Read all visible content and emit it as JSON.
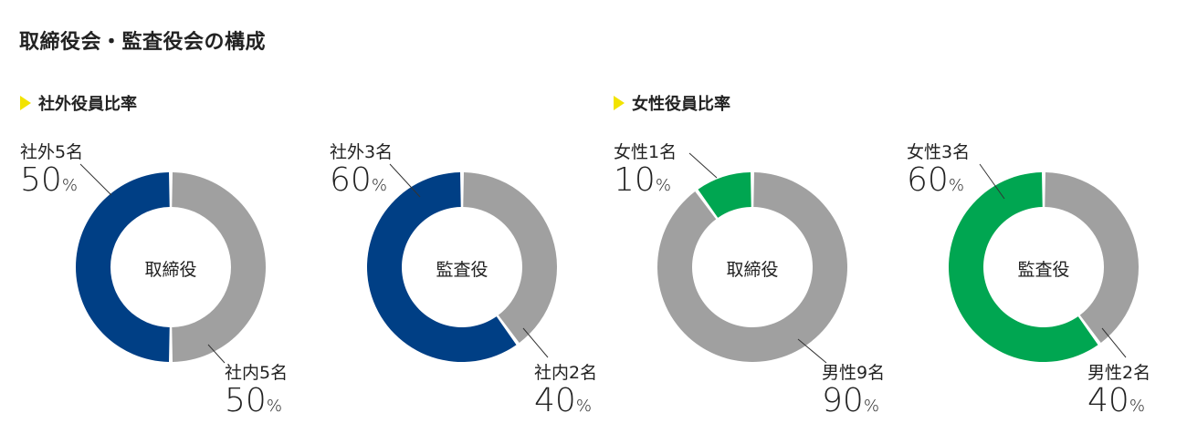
{
  "title": "取締役会・監査役会の構成",
  "sections": [
    {
      "label": "社外役員比率"
    },
    {
      "label": "女性役員比率"
    }
  ],
  "colors": {
    "navy": "#003f85",
    "green": "#00a651",
    "gray": "#a0a0a0",
    "accent": "#f2e300"
  },
  "chart_data": [
    {
      "type": "pie",
      "center_label": "取締役",
      "slices": [
        {
          "label": "社外5名",
          "value": 50,
          "pct_text": "50",
          "color": "#003f85"
        },
        {
          "label": "社内5名",
          "value": 50,
          "pct_text": "50",
          "color": "#a0a0a0"
        }
      ]
    },
    {
      "type": "pie",
      "center_label": "監査役",
      "slices": [
        {
          "label": "社外3名",
          "value": 60,
          "pct_text": "60",
          "color": "#003f85"
        },
        {
          "label": "社内2名",
          "value": 40,
          "pct_text": "40",
          "color": "#a0a0a0"
        }
      ]
    },
    {
      "type": "pie",
      "center_label": "取締役",
      "slices": [
        {
          "label": "女性1名",
          "value": 10,
          "pct_text": "10",
          "color": "#00a651"
        },
        {
          "label": "男性9名",
          "value": 90,
          "pct_text": "90",
          "color": "#a0a0a0"
        }
      ]
    },
    {
      "type": "pie",
      "center_label": "監査役",
      "slices": [
        {
          "label": "女性3名",
          "value": 60,
          "pct_text": "60",
          "color": "#00a651"
        },
        {
          "label": "男性2名",
          "value": 40,
          "pct_text": "40",
          "color": "#a0a0a0"
        }
      ]
    }
  ]
}
